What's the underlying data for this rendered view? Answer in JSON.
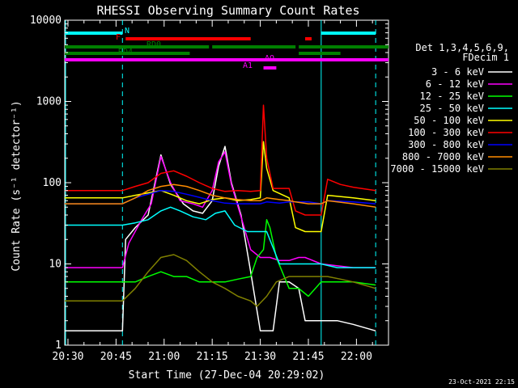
{
  "chart_data": {
    "type": "line",
    "title": "RHESSI Observing Summary Count Rates",
    "xlabel": "Start Time (27-Dec-04 20:29:02)",
    "ylabel": "Count Rate (s⁻¹ detector⁻¹)",
    "y_scale": "log",
    "ylim": [
      1,
      10000
    ],
    "xlim_minutes": [
      0,
      101
    ],
    "x_tick_labels": [
      "20:30",
      "20:45",
      "21:00",
      "21:15",
      "21:30",
      "21:45",
      "22:00"
    ],
    "y_tick_labels": [
      "1",
      "10",
      "100",
      "1000",
      "10000"
    ],
    "legend_header": [
      "Det 1,3,4,5,6,9,",
      "FDecim 1"
    ],
    "timestamp": "23-Oct-2021 22:15",
    "flags": {
      "N": {
        "label": "N",
        "color": "#00ffff",
        "intervals_min": [
          [
            0,
            18
          ],
          [
            80,
            97
          ]
        ]
      },
      "F": {
        "label": "F",
        "color": "#ff0000",
        "intervals_min": [
          [
            19,
            58
          ],
          [
            75,
            77
          ]
        ]
      },
      "RD0": {
        "label": "RD0",
        "color": "#008000",
        "intervals_min": [
          [
            0,
            45
          ],
          [
            46,
            72
          ],
          [
            73,
            101
          ]
        ]
      },
      "RD4": {
        "label": "RD4",
        "color": "#008000",
        "intervals_min": [
          [
            0,
            39
          ],
          [
            73,
            86
          ]
        ]
      },
      "AO": {
        "label": "AO",
        "color": "#ff00ff",
        "intervals_min": [
          [
            0,
            101
          ]
        ]
      },
      "A1": {
        "label": "A1",
        "color": "#ff00ff",
        "intervals_min": [
          [
            62,
            66
          ]
        ]
      }
    },
    "series": [
      {
        "name": "3 - 6 keV",
        "color": "#ffffff",
        "points": [
          [
            0,
            1.5
          ],
          [
            18,
            1.5
          ],
          [
            19,
            20
          ],
          [
            22,
            28
          ],
          [
            26,
            40
          ],
          [
            30,
            220
          ],
          [
            33,
            95
          ],
          [
            37,
            55
          ],
          [
            40,
            45
          ],
          [
            43,
            42
          ],
          [
            46,
            60
          ],
          [
            48,
            160
          ],
          [
            50,
            280
          ],
          [
            52,
            100
          ],
          [
            55,
            40
          ],
          [
            58,
            8
          ],
          [
            61,
            1.5
          ],
          [
            65,
            1.5
          ],
          [
            67,
            6
          ],
          [
            70,
            6
          ],
          [
            73,
            5
          ],
          [
            75,
            2
          ],
          [
            80,
            2
          ],
          [
            85,
            2
          ],
          [
            90,
            1.8
          ],
          [
            97,
            1.5
          ]
        ]
      },
      {
        "name": "6 - 12 keV",
        "color": "#ff00ff",
        "points": [
          [
            0,
            9
          ],
          [
            18,
            9
          ],
          [
            20,
            18
          ],
          [
            24,
            35
          ],
          [
            27,
            55
          ],
          [
            30,
            210
          ],
          [
            33,
            100
          ],
          [
            36,
            60
          ],
          [
            40,
            55
          ],
          [
            43,
            50
          ],
          [
            46,
            80
          ],
          [
            48,
            180
          ],
          [
            50,
            240
          ],
          [
            52,
            95
          ],
          [
            55,
            38
          ],
          [
            58,
            15
          ],
          [
            61,
            12
          ],
          [
            64,
            12
          ],
          [
            67,
            11
          ],
          [
            70,
            11
          ],
          [
            73,
            12
          ],
          [
            75,
            12
          ],
          [
            80,
            10
          ],
          [
            90,
            9
          ],
          [
            97,
            9
          ]
        ]
      },
      {
        "name": "12 - 25 keV",
        "color": "#00ff00",
        "points": [
          [
            0,
            6
          ],
          [
            18,
            6
          ],
          [
            22,
            6
          ],
          [
            26,
            7
          ],
          [
            30,
            8
          ],
          [
            34,
            7
          ],
          [
            38,
            7
          ],
          [
            42,
            6
          ],
          [
            46,
            6
          ],
          [
            50,
            6
          ],
          [
            54,
            6.5
          ],
          [
            58,
            7
          ],
          [
            60,
            12
          ],
          [
            62,
            15
          ],
          [
            63,
            35
          ],
          [
            64,
            28
          ],
          [
            66,
            12
          ],
          [
            70,
            5
          ],
          [
            73,
            5
          ],
          [
            76,
            4
          ],
          [
            80,
            6
          ],
          [
            85,
            6
          ],
          [
            90,
            6
          ],
          [
            97,
            5.5
          ]
        ]
      },
      {
        "name": "25 - 50 keV",
        "color": "#00ffff",
        "points": [
          [
            0,
            30
          ],
          [
            18,
            30
          ],
          [
            22,
            32
          ],
          [
            26,
            35
          ],
          [
            30,
            45
          ],
          [
            33,
            50
          ],
          [
            36,
            45
          ],
          [
            40,
            38
          ],
          [
            44,
            35
          ],
          [
            47,
            42
          ],
          [
            50,
            45
          ],
          [
            53,
            30
          ],
          [
            57,
            25
          ],
          [
            60,
            25
          ],
          [
            63,
            25
          ],
          [
            67,
            10
          ],
          [
            70,
            10
          ],
          [
            73,
            10
          ],
          [
            76,
            10
          ],
          [
            80,
            10
          ],
          [
            85,
            9
          ],
          [
            90,
            9
          ],
          [
            97,
            9
          ]
        ]
      },
      {
        "name": "50 - 100 keV",
        "color": "#ffff00",
        "points": [
          [
            0,
            65
          ],
          [
            18,
            65
          ],
          [
            22,
            70
          ],
          [
            26,
            75
          ],
          [
            30,
            80
          ],
          [
            34,
            70
          ],
          [
            38,
            60
          ],
          [
            42,
            55
          ],
          [
            46,
            62
          ],
          [
            50,
            65
          ],
          [
            54,
            60
          ],
          [
            58,
            62
          ],
          [
            61,
            65
          ],
          [
            62,
            320
          ],
          [
            63,
            150
          ],
          [
            65,
            80
          ],
          [
            70,
            65
          ],
          [
            72,
            28
          ],
          [
            75,
            25
          ],
          [
            80,
            25
          ],
          [
            82,
            70
          ],
          [
            90,
            65
          ],
          [
            97,
            60
          ]
        ]
      },
      {
        "name": "100 - 300 keV",
        "color": "#ff0000",
        "points": [
          [
            0,
            80
          ],
          [
            18,
            80
          ],
          [
            22,
            90
          ],
          [
            26,
            100
          ],
          [
            30,
            130
          ],
          [
            34,
            140
          ],
          [
            38,
            120
          ],
          [
            42,
            100
          ],
          [
            46,
            85
          ],
          [
            50,
            78
          ],
          [
            54,
            80
          ],
          [
            58,
            78
          ],
          [
            61,
            80
          ],
          [
            62,
            900
          ],
          [
            63,
            200
          ],
          [
            65,
            85
          ],
          [
            70,
            85
          ],
          [
            72,
            45
          ],
          [
            75,
            40
          ],
          [
            80,
            40
          ],
          [
            82,
            110
          ],
          [
            86,
            95
          ],
          [
            90,
            88
          ],
          [
            97,
            80
          ]
        ]
      },
      {
        "name": "300 - 800 keV",
        "color": "#0000ff",
        "points": [
          [
            0,
            55
          ],
          [
            18,
            55
          ],
          [
            22,
            65
          ],
          [
            26,
            72
          ],
          [
            30,
            80
          ],
          [
            34,
            78
          ],
          [
            38,
            72
          ],
          [
            42,
            66
          ],
          [
            46,
            60
          ],
          [
            50,
            56
          ],
          [
            54,
            55
          ],
          [
            58,
            55
          ],
          [
            61,
            55
          ],
          [
            63,
            58
          ],
          [
            67,
            56
          ],
          [
            70,
            58
          ],
          [
            72,
            58
          ],
          [
            76,
            58
          ],
          [
            80,
            55
          ],
          [
            82,
            60
          ],
          [
            90,
            58
          ],
          [
            97,
            55
          ]
        ]
      },
      {
        "name": "800 - 7000 keV",
        "color": "#ff8c00",
        "points": [
          [
            0,
            55
          ],
          [
            18,
            55
          ],
          [
            22,
            65
          ],
          [
            26,
            80
          ],
          [
            30,
            90
          ],
          [
            34,
            95
          ],
          [
            38,
            90
          ],
          [
            42,
            80
          ],
          [
            46,
            70
          ],
          [
            50,
            65
          ],
          [
            54,
            62
          ],
          [
            58,
            60
          ],
          [
            61,
            60
          ],
          [
            63,
            65
          ],
          [
            67,
            62
          ],
          [
            70,
            60
          ],
          [
            72,
            58
          ],
          [
            76,
            55
          ],
          [
            80,
            55
          ],
          [
            82,
            60
          ],
          [
            90,
            55
          ],
          [
            97,
            50
          ]
        ]
      },
      {
        "name": "7000 - 15000 keV",
        "color": "#808000",
        "points": [
          [
            0,
            3.5
          ],
          [
            18,
            3.5
          ],
          [
            22,
            5
          ],
          [
            26,
            8
          ],
          [
            30,
            12
          ],
          [
            34,
            13
          ],
          [
            38,
            11
          ],
          [
            42,
            8
          ],
          [
            46,
            6
          ],
          [
            50,
            5
          ],
          [
            54,
            4
          ],
          [
            58,
            3.5
          ],
          [
            60,
            3
          ],
          [
            63,
            4
          ],
          [
            66,
            6
          ],
          [
            70,
            7
          ],
          [
            74,
            7
          ],
          [
            78,
            7
          ],
          [
            82,
            7
          ],
          [
            86,
            6.5
          ],
          [
            90,
            6
          ],
          [
            97,
            5
          ]
        ]
      }
    ]
  }
}
